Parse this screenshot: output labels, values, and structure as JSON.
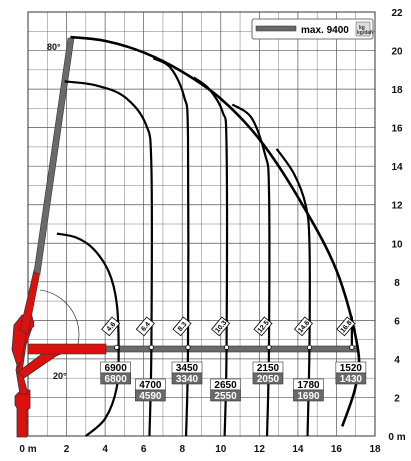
{
  "axes": {
    "x_ticks": [
      "0 m",
      "2",
      "4",
      "6",
      "8",
      "10",
      "12",
      "14",
      "16",
      "18"
    ],
    "y_ticks": [
      "0 m",
      "2",
      "4",
      "6",
      "8",
      "10",
      "12",
      "14",
      "16",
      "18",
      "20",
      "22"
    ]
  },
  "legend": {
    "label": "max. 9400",
    "badge_top": "kg",
    "badge_bottom": "kg/daN"
  },
  "boom_angles": [
    "80°",
    "20°"
  ],
  "colors": {
    "crane": "#dd1010",
    "boom": "#666666",
    "curve": "#000000",
    "grid": "#555555",
    "cap_lower_bg": "#6a6a6a"
  },
  "chart_data": {
    "type": "line",
    "x_unit": "m",
    "y_unit": "m",
    "xlim": [
      0,
      18
    ],
    "ylim": [
      0,
      22
    ],
    "grid": true,
    "max_capacity": "max. 9400",
    "boom_angle_range": [
      "20°",
      "80°"
    ],
    "load_points": [
      {
        "reach": "4.6",
        "upper": "6900",
        "lower": "6800",
        "x": 4.6
      },
      {
        "reach": "6.4",
        "upper": "4700",
        "lower": "4590",
        "x": 6.4
      },
      {
        "reach": "8.3",
        "upper": "3450",
        "lower": "3340",
        "x": 8.3
      },
      {
        "reach": "10.3",
        "upper": "2650",
        "lower": "2550",
        "x": 10.3
      },
      {
        "reach": "12.5",
        "upper": "2150",
        "lower": "2050",
        "x": 12.5
      },
      {
        "reach": "14.6",
        "upper": "1780",
        "lower": "1690",
        "x": 14.6
      },
      {
        "reach": "16.8",
        "upper": "1520",
        "lower": "1430",
        "x": 16.8
      }
    ],
    "working_envelope": [
      [
        2.2,
        20.7
      ],
      [
        4,
        20.5
      ],
      [
        6,
        19.9
      ],
      [
        8,
        18.9
      ],
      [
        10,
        17.5
      ],
      [
        12,
        15.4
      ],
      [
        14,
        12.4
      ],
      [
        16,
        8.6
      ],
      [
        17.1,
        4.6
      ],
      [
        17,
        2.6
      ],
      [
        16.3,
        0.5
      ]
    ],
    "reach_curves": [
      {
        "reach": "4.6",
        "points": [
          [
            1.5,
            10.5
          ],
          [
            2.5,
            10.3
          ],
          [
            3.4,
            9.7
          ],
          [
            4.2,
            8.5
          ],
          [
            4.6,
            6.9
          ],
          [
            4.7,
            4.6
          ],
          [
            4.6,
            2.5
          ],
          [
            4.0,
            0.9
          ],
          [
            3.0,
            0.0
          ]
        ]
      },
      {
        "reach": "6.4",
        "points": [
          [
            1.9,
            18.4
          ],
          [
            3.5,
            18.2
          ],
          [
            5.0,
            17.6
          ],
          [
            6.1,
            16.2
          ],
          [
            6.4,
            14.0
          ],
          [
            6.4,
            4.6
          ],
          [
            6.3,
            0.0
          ]
        ]
      },
      {
        "reach": "8.3",
        "points": [
          [
            6.5,
            19.6
          ],
          [
            7.4,
            19.1
          ],
          [
            8.1,
            17.6
          ],
          [
            8.3,
            15.5
          ],
          [
            8.3,
            4.6
          ],
          [
            8.2,
            0.0
          ]
        ]
      },
      {
        "reach": "10.3",
        "points": [
          [
            8.6,
            18.6
          ],
          [
            9.4,
            18.0
          ],
          [
            10.1,
            16.8
          ],
          [
            10.3,
            15.0
          ],
          [
            10.3,
            4.6
          ],
          [
            10.2,
            0.0
          ]
        ]
      },
      {
        "reach": "12.5",
        "points": [
          [
            10.6,
            17.2
          ],
          [
            11.6,
            16.5
          ],
          [
            12.3,
            14.6
          ],
          [
            12.5,
            12.8
          ],
          [
            12.5,
            4.6
          ],
          [
            12.4,
            0.0
          ]
        ]
      },
      {
        "reach": "14.6",
        "points": [
          [
            12.9,
            14.9
          ],
          [
            13.8,
            13.6
          ],
          [
            14.4,
            12.0
          ],
          [
            14.6,
            10.0
          ],
          [
            14.6,
            4.6
          ],
          [
            14.5,
            0.0
          ]
        ]
      },
      {
        "reach": "16.8",
        "points": [
          [
            16.8,
            6.2
          ],
          [
            16.8,
            4.6
          ]
        ]
      }
    ]
  }
}
